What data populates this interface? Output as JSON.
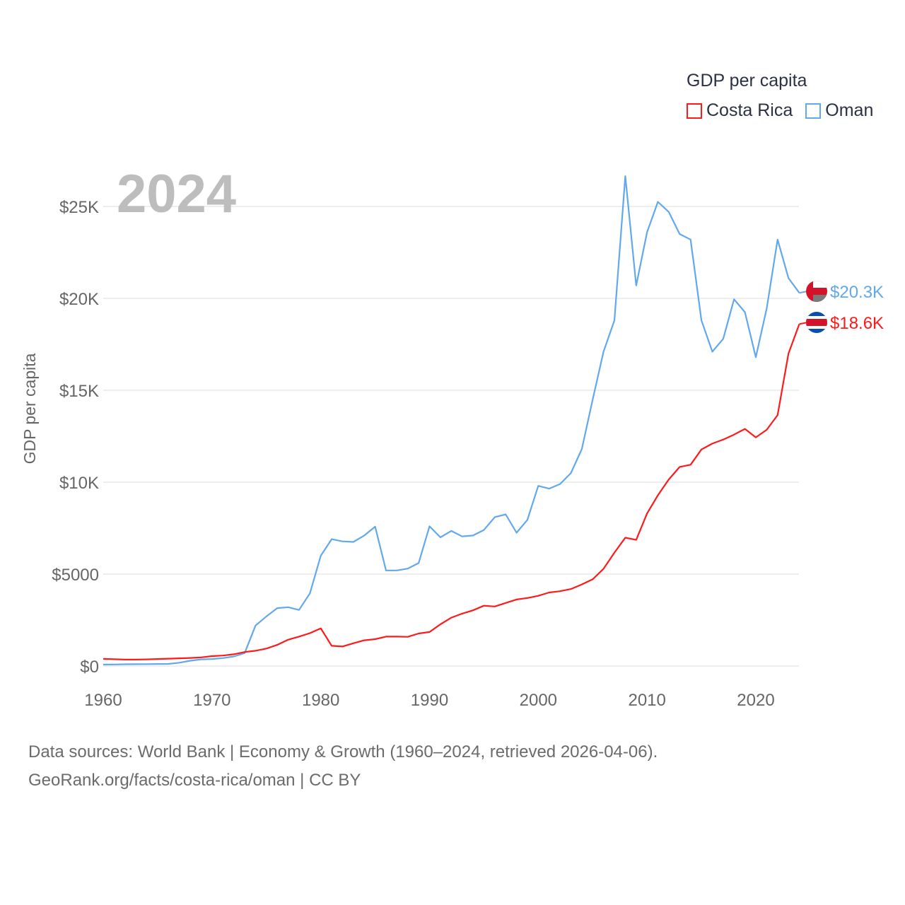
{
  "chart_data": {
    "type": "line",
    "title": "2024",
    "ylabel": "GDP per capita",
    "xlabel": "",
    "xlim": [
      1960,
      2024
    ],
    "ylim": [
      0,
      27000
    ],
    "x_ticks": [
      1960,
      1970,
      1980,
      1990,
      2000,
      2010,
      2020
    ],
    "x_tick_labels": [
      "1960",
      "1970",
      "1980",
      "1990",
      "2000",
      "2010",
      "2020"
    ],
    "y_ticks": [
      0,
      5000,
      10000,
      15000,
      20000,
      25000
    ],
    "y_tick_labels": [
      "$0",
      "$5000",
      "$10K",
      "$15K",
      "$20K",
      "$25K"
    ],
    "grid": true,
    "legend": {
      "title": "GDP per capita",
      "placement": "top-right"
    },
    "x": [
      1960,
      1961,
      1962,
      1963,
      1964,
      1965,
      1966,
      1967,
      1968,
      1969,
      1970,
      1971,
      1972,
      1973,
      1974,
      1975,
      1976,
      1977,
      1978,
      1979,
      1980,
      1981,
      1982,
      1983,
      1984,
      1985,
      1986,
      1987,
      1988,
      1989,
      1990,
      1991,
      1992,
      1993,
      1994,
      1995,
      1996,
      1997,
      1998,
      1999,
      2000,
      2001,
      2002,
      2003,
      2004,
      2005,
      2006,
      2007,
      2008,
      2009,
      2010,
      2011,
      2012,
      2013,
      2014,
      2015,
      2016,
      2017,
      2018,
      2019,
      2020,
      2021,
      2022,
      2023,
      2024
    ],
    "series": [
      {
        "name": "Costa Rica",
        "color": "#ff1a1a",
        "end_label": "$18.6K",
        "flag": "costa-rica",
        "values": [
          390,
          370,
          350,
          350,
          360,
          380,
          400,
          420,
          440,
          470,
          540,
          570,
          640,
          760,
          830,
          950,
          1150,
          1430,
          1600,
          1790,
          2050,
          1100,
          1060,
          1240,
          1400,
          1460,
          1600,
          1600,
          1590,
          1770,
          1850,
          2270,
          2630,
          2850,
          3030,
          3280,
          3240,
          3430,
          3620,
          3700,
          3820,
          4000,
          4070,
          4190,
          4440,
          4720,
          5290,
          6170,
          6980,
          6860,
          8300,
          9290,
          10150,
          10830,
          10950,
          11780,
          12100,
          12320,
          12590,
          12900,
          12440,
          12850,
          13650,
          17000,
          18600
        ]
      },
      {
        "name": "Oman",
        "color": "#62a8ee",
        "end_label": "$20.3K",
        "flag": "oman",
        "values": [
          80,
          85,
          95,
          100,
          105,
          110,
          115,
          180,
          290,
          360,
          380,
          430,
          520,
          700,
          2200,
          2700,
          3150,
          3200,
          3050,
          3950,
          6000,
          6900,
          6780,
          6750,
          7100,
          7580,
          5200,
          5200,
          5300,
          5600,
          7600,
          7000,
          7350,
          7050,
          7100,
          7400,
          8100,
          8250,
          7250,
          7950,
          9800,
          9650,
          9900,
          10500,
          11800,
          14500,
          17100,
          18800,
          26650,
          20700,
          23600,
          25250,
          24700,
          23500,
          23200,
          18800,
          17100,
          17800,
          19950,
          19250,
          16800,
          19450,
          23200,
          21100,
          20300
        ]
      }
    ]
  },
  "footer": {
    "line1": "Data sources: World Bank | Economy & Growth (1960–2024, retrieved 2026-04-06).",
    "line2": "GeoRank.org/facts/costa-rica/oman | CC BY"
  }
}
